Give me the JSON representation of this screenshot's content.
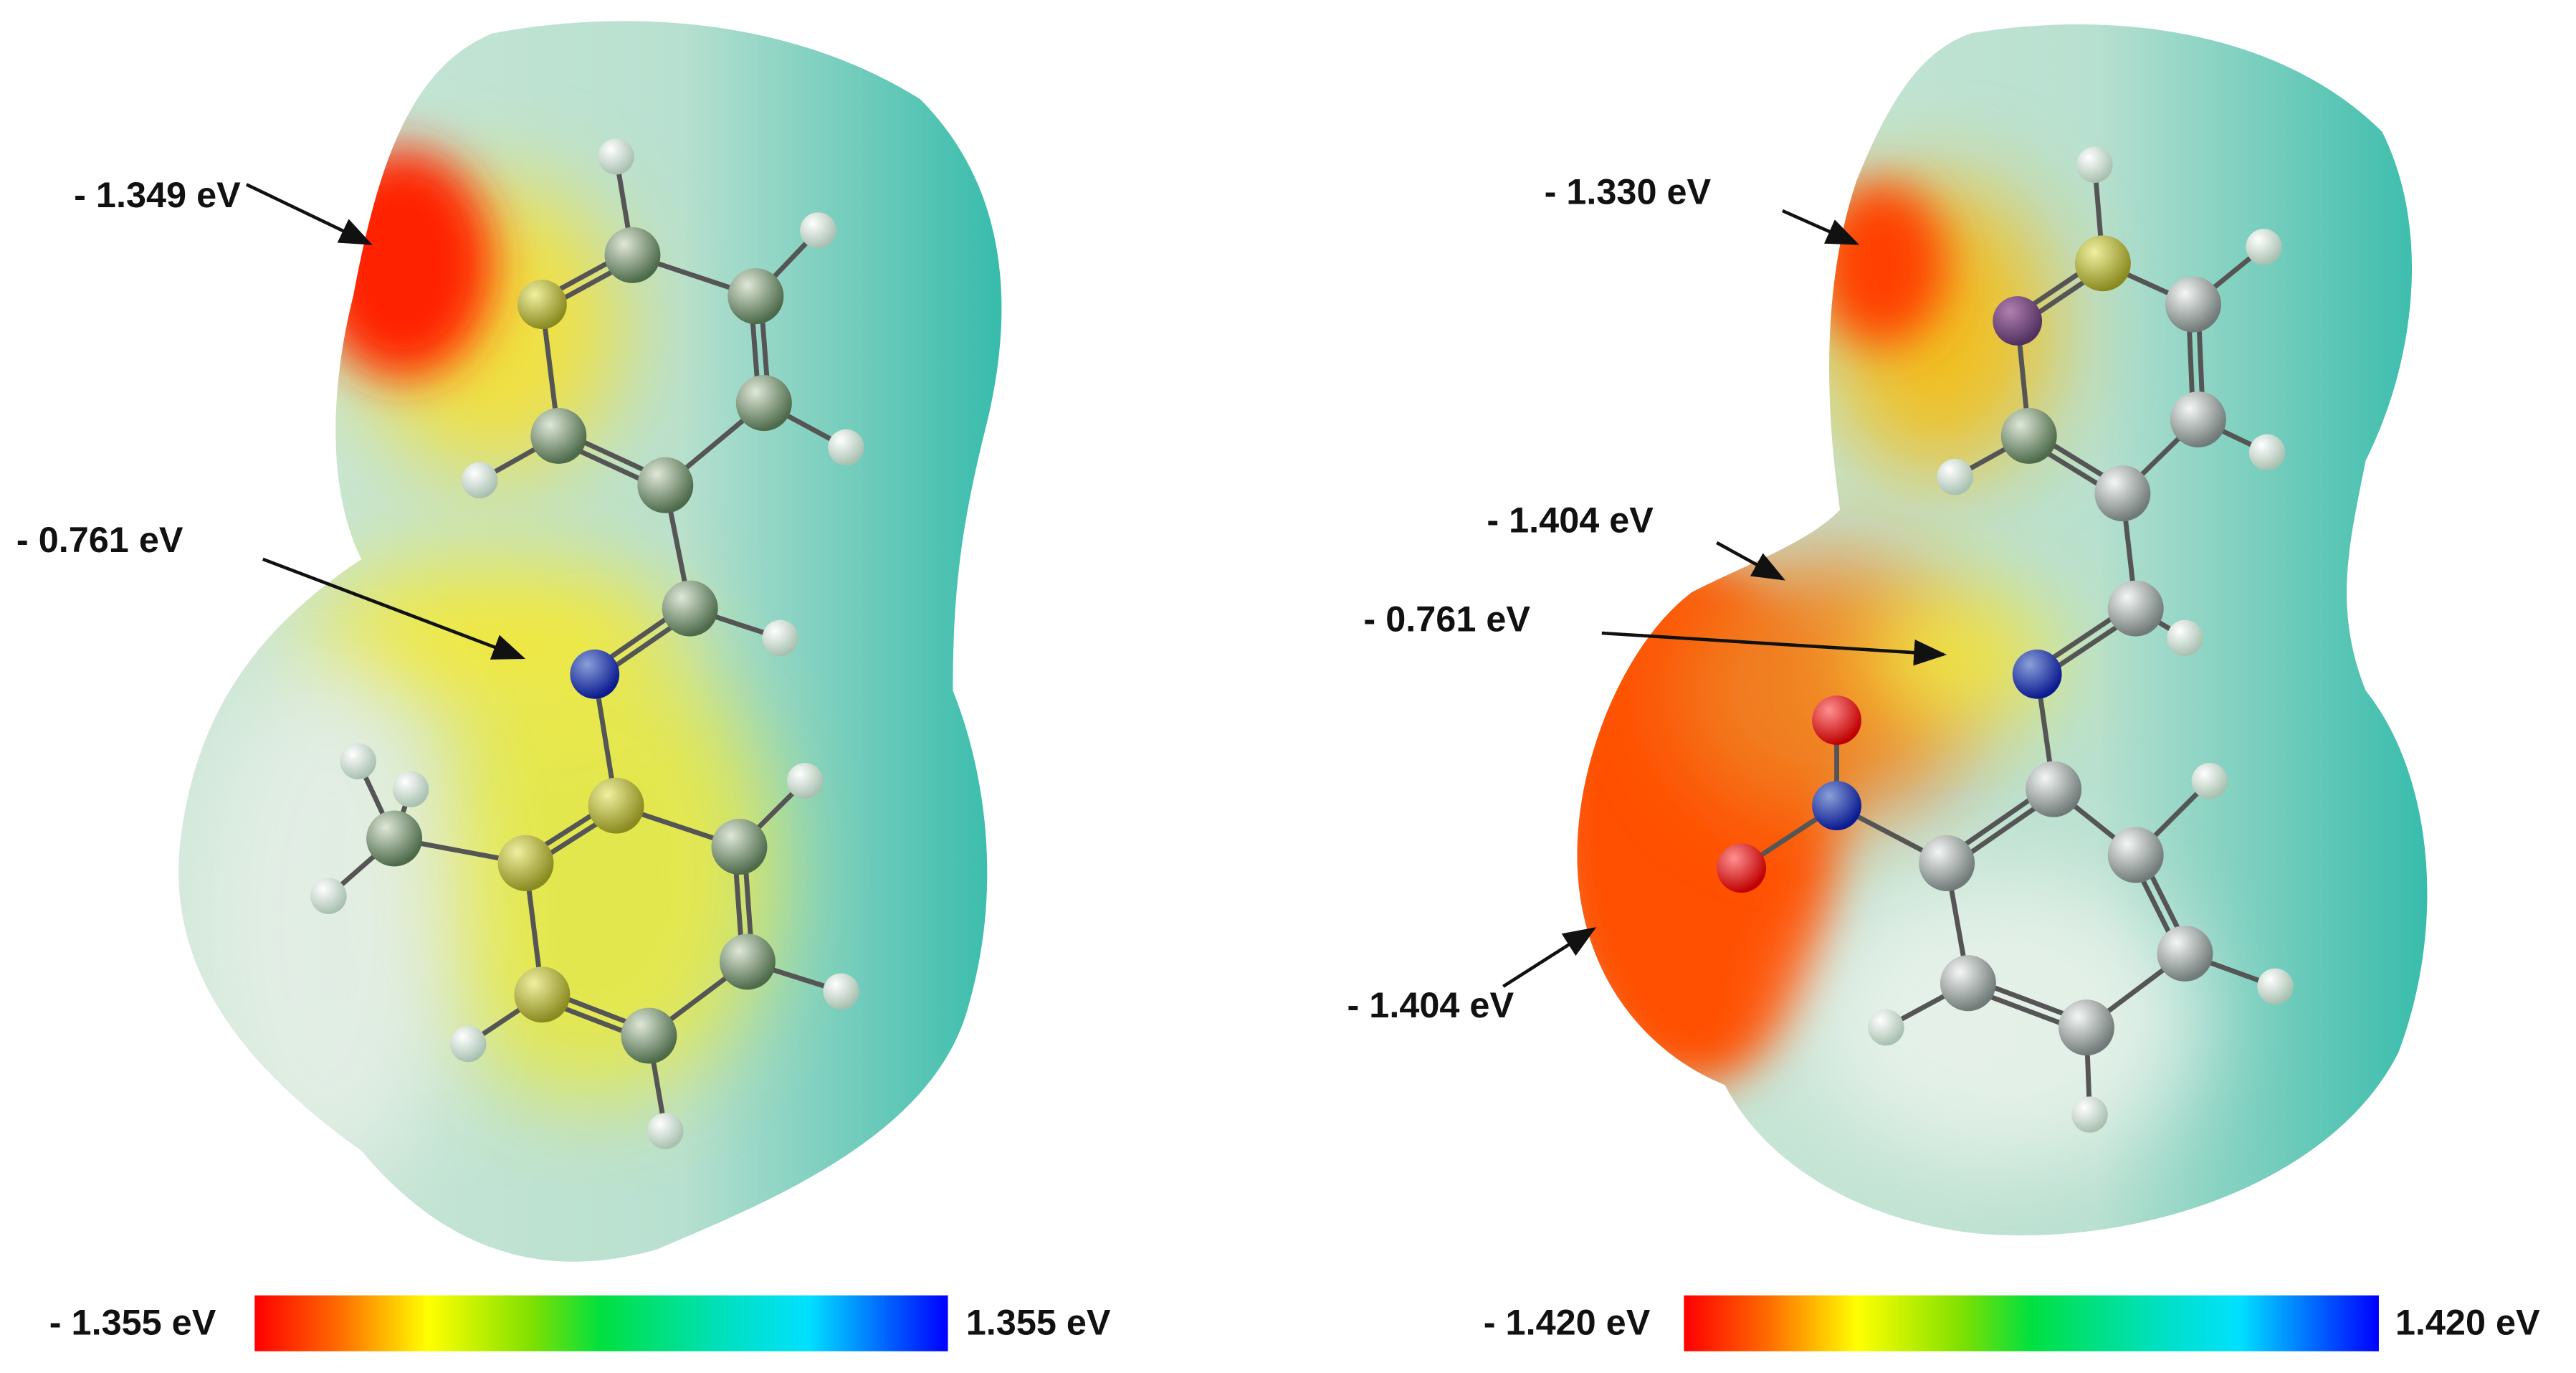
{
  "panels": [
    {
      "annotations": [
        "- 1.349 eV",
        "- 0.761 eV"
      ],
      "colorbar": {
        "min_label": "- 1.355 eV",
        "max_label": "1.355 eV"
      }
    },
    {
      "annotations": [
        "- 1.330 eV",
        "- 1.404 eV",
        "- 0.761 eV",
        "- 1.404 eV"
      ],
      "colorbar": {
        "min_label": "- 1.420 eV",
        "max_label": "1.420 eV"
      }
    }
  ]
}
